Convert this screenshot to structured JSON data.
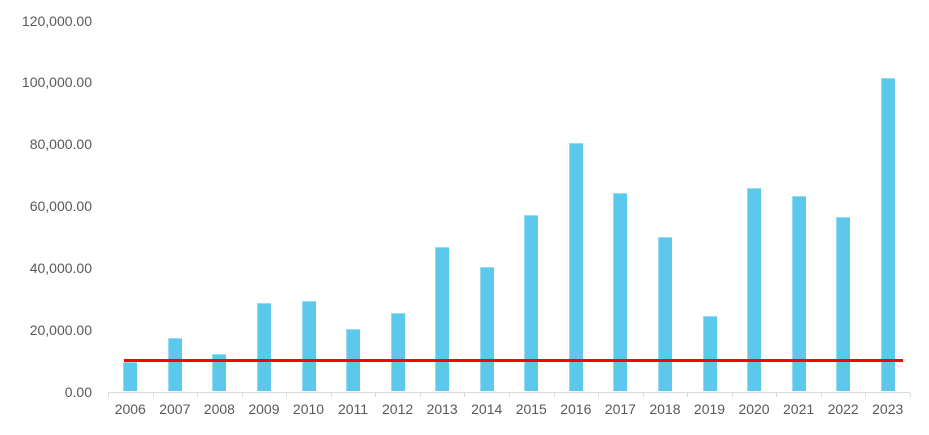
{
  "chart_data": {
    "type": "bar",
    "title": "",
    "xlabel": "",
    "ylabel": "",
    "categories": [
      "2006",
      "2007",
      "2008",
      "2009",
      "2010",
      "2011",
      "2012",
      "2013",
      "2014",
      "2015",
      "2016",
      "2017",
      "2018",
      "2019",
      "2020",
      "2021",
      "2022",
      "2023"
    ],
    "values": [
      9500,
      17400,
      12100,
      28600,
      29300,
      20300,
      25400,
      46900,
      40300,
      57100,
      80400,
      64200,
      50100,
      24300,
      65900,
      63300,
      56400,
      101500
    ],
    "bar_color": "#5CC9EC",
    "reference_line": {
      "value": 10000,
      "color": "#FF0000"
    },
    "ylim": [
      0,
      120000
    ],
    "ytick_interval": 20000,
    "ytick_labels": [
      "0.00",
      "20,000.00",
      "40,000.00",
      "60,000.00",
      "80,000.00",
      "100,000.00",
      "120,000.00"
    ],
    "grid": false,
    "legend": "none",
    "axis_text_color": "#595959",
    "axis_line_color": "#D9D9D9",
    "background": "#FFFFFF"
  }
}
